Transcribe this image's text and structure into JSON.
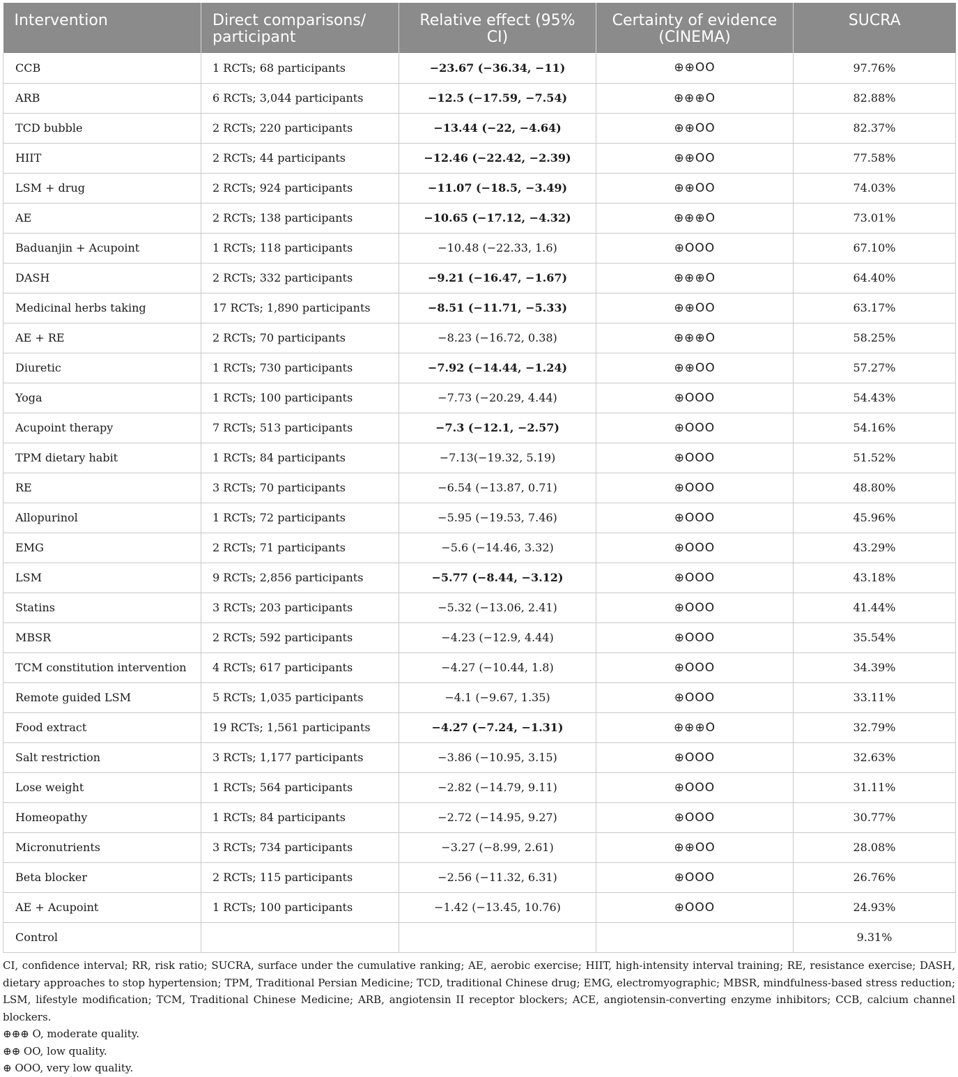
{
  "table": {
    "headers": {
      "intervention": "Intervention",
      "direct": "Direct comparisons/ participant",
      "effect": "Relative effect (95% CI)",
      "certainty": "Certainty of evidence (CINEMA)",
      "sucra": "SUCRA"
    },
    "rows": [
      {
        "intervention": "CCB",
        "direct": "1 RCTs; 68 participants",
        "effect": "−23.67 (−36.34, −11)",
        "effect_bold": true,
        "certainty": "⊕⊕OO",
        "sucra": "97.76%"
      },
      {
        "intervention": "ARB",
        "direct": "6 RCTs; 3,044 participants",
        "effect": "−12.5 (−17.59, −7.54)",
        "effect_bold": true,
        "certainty": "⊕⊕⊕O",
        "sucra": "82.88%"
      },
      {
        "intervention": "TCD bubble",
        "direct": "2 RCTs; 220 participants",
        "effect": "−13.44 (−22, −4.64)",
        "effect_bold": true,
        "certainty": "⊕⊕OO",
        "sucra": "82.37%"
      },
      {
        "intervention": "HIIT",
        "direct": "2 RCTs; 44 participants",
        "effect": "−12.46 (−22.42, −2.39)",
        "effect_bold": true,
        "certainty": "⊕⊕OO",
        "sucra": "77.58%"
      },
      {
        "intervention": "LSM + drug",
        "direct": "2 RCTs; 924 participants",
        "effect": "−11.07 (−18.5, −3.49)",
        "effect_bold": true,
        "certainty": "⊕⊕OO",
        "sucra": "74.03%"
      },
      {
        "intervention": "AE",
        "direct": "2 RCTs; 138 participants",
        "effect": "−10.65 (−17.12, −4.32)",
        "effect_bold": true,
        "certainty": "⊕⊕⊕O",
        "sucra": "73.01%"
      },
      {
        "intervention": "Baduanjin + Acupoint",
        "direct": "1 RCTs; 118 participants",
        "effect": "−10.48 (−22.33, 1.6)",
        "effect_bold": false,
        "certainty": "⊕OOO",
        "sucra": "67.10%"
      },
      {
        "intervention": "DASH",
        "direct": "2 RCTs; 332 participants",
        "effect": "−9.21 (−16.47, −1.67)",
        "effect_bold": true,
        "certainty": "⊕⊕⊕O",
        "sucra": "64.40%"
      },
      {
        "intervention": "Medicinal herbs taking",
        "direct": "17 RCTs; 1,890 participants",
        "effect": "−8.51 (−11.71, −5.33)",
        "effect_bold": true,
        "certainty": "⊕⊕OO",
        "sucra": "63.17%"
      },
      {
        "intervention": "AE + RE",
        "direct": "2 RCTs; 70 participants",
        "effect": "−8.23 (−16.72, 0.38)",
        "effect_bold": false,
        "certainty": "⊕⊕⊕O",
        "sucra": "58.25%"
      },
      {
        "intervention": "Diuretic",
        "direct": "1 RCTs; 730 participants",
        "effect": "−7.92 (−14.44, −1.24)",
        "effect_bold": true,
        "certainty": "⊕⊕OO",
        "sucra": "57.27%"
      },
      {
        "intervention": "Yoga",
        "direct": "1 RCTs; 100 participants",
        "effect": "−7.73 (−20.29, 4.44)",
        "effect_bold": false,
        "certainty": "⊕OOO",
        "sucra": "54.43%"
      },
      {
        "intervention": "Acupoint therapy",
        "direct": "7 RCTs; 513 participants",
        "effect": "−7.3 (−12.1, −2.57)",
        "effect_bold": true,
        "certainty": "⊕OOO",
        "sucra": "54.16%"
      },
      {
        "intervention": "TPM dietary habit",
        "direct": "1 RCTs; 84 participants",
        "effect": "−7.13(−19.32, 5.19)",
        "effect_bold": false,
        "certainty": "⊕OOO",
        "sucra": "51.52%"
      },
      {
        "intervention": "RE",
        "direct": "3 RCTs; 70 participants",
        "effect": "−6.54 (−13.87, 0.71)",
        "effect_bold": false,
        "certainty": "⊕OOO",
        "sucra": "48.80%"
      },
      {
        "intervention": "Allopurinol",
        "direct": "1 RCTs; 72 participants",
        "effect": "−5.95 (−19.53, 7.46)",
        "effect_bold": false,
        "certainty": "⊕OOO",
        "sucra": "45.96%"
      },
      {
        "intervention": "EMG",
        "direct": "2 RCTs; 71 participants",
        "effect": "−5.6 (−14.46, 3.32)",
        "effect_bold": false,
        "certainty": "⊕OOO",
        "sucra": "43.29%"
      },
      {
        "intervention": "LSM",
        "direct": "9 RCTs; 2,856 participants",
        "effect": "−5.77 (−8.44, −3.12)",
        "effect_bold": true,
        "certainty": "⊕OOO",
        "sucra": "43.18%"
      },
      {
        "intervention": "Statins",
        "direct": "3 RCTs; 203 participants",
        "effect": "−5.32 (−13.06, 2.41)",
        "effect_bold": false,
        "certainty": "⊕OOO",
        "sucra": "41.44%"
      },
      {
        "intervention": "MBSR",
        "direct": "2 RCTs; 592 participants",
        "effect": "−4.23 (−12.9, 4.44)",
        "effect_bold": false,
        "certainty": "⊕OOO",
        "sucra": "35.54%"
      },
      {
        "intervention": "TCM constitution intervention",
        "direct": "4 RCTs; 617 participants",
        "effect": "−4.27 (−10.44, 1.8)",
        "effect_bold": false,
        "certainty": "⊕OOO",
        "sucra": "34.39%"
      },
      {
        "intervention": "Remote guided LSM",
        "direct": "5 RCTs; 1,035 participants",
        "effect": "−4.1 (−9.67, 1.35)",
        "effect_bold": false,
        "certainty": "⊕OOO",
        "sucra": "33.11%"
      },
      {
        "intervention": "Food extract",
        "direct": "19 RCTs; 1,561 participants",
        "effect": "−4.27 (−7.24, −1.31)",
        "effect_bold": true,
        "certainty": "⊕⊕⊕O",
        "sucra": "32.79%"
      },
      {
        "intervention": "Salt restriction",
        "direct": "3 RCTs; 1,177 participants",
        "effect": "−3.86 (−10.95, 3.15)",
        "effect_bold": false,
        "certainty": "⊕OOO",
        "sucra": "32.63%"
      },
      {
        "intervention": "Lose weight",
        "direct": "1 RCTs; 564 participants",
        "effect": "−2.82 (−14.79, 9.11)",
        "effect_bold": false,
        "certainty": "⊕OOO",
        "sucra": "31.11%"
      },
      {
        "intervention": "Homeopathy",
        "direct": "1 RCTs; 84 participants",
        "effect": "−2.72 (−14.95, 9.27)",
        "effect_bold": false,
        "certainty": "⊕OOO",
        "sucra": "30.77%"
      },
      {
        "intervention": "Micronutrients",
        "direct": "3 RCTs; 734 participants",
        "effect": "−3.27 (−8.99, 2.61)",
        "effect_bold": false,
        "certainty": "⊕⊕OO",
        "sucra": "28.08%"
      },
      {
        "intervention": "Beta blocker",
        "direct": "2 RCTs; 115 participants",
        "effect": "−2.56 (−11.32, 6.31)",
        "effect_bold": false,
        "certainty": "⊕OOO",
        "sucra": "26.76%"
      },
      {
        "intervention": "AE + Acupoint",
        "direct": "1 RCTs; 100 participants",
        "effect": "−1.42 (−13.45, 10.76)",
        "effect_bold": false,
        "certainty": "⊕OOO",
        "sucra": "24.93%"
      },
      {
        "intervention": "Control",
        "direct": "",
        "effect": "",
        "effect_bold": false,
        "certainty": "",
        "sucra": "9.31%"
      }
    ]
  },
  "footnotes": {
    "abbreviations": "CI, confidence interval; RR, risk ratio; SUCRA, surface under the cumulative ranking; AE, aerobic exercise; HIIT, high-intensity interval training; RE, resistance exercise; DASH, dietary approaches to stop hypertension; TPM, Traditional Persian Medicine; TCD, traditional Chinese drug; EMG, electromyographic; MBSR, mindfulness-based stress reduction; LSM, lifestyle modification; TCM, Traditional Chinese Medicine; ARB, angiotensin II receptor blockers; ACE, angiotensin-converting enzyme inhibitors; CCB, calcium channel blockers.",
    "moderate": "⊕⊕⊕ O, moderate quality.",
    "low": "⊕⊕ OO, low quality.",
    "very_low": "⊕ OOO, very low quality."
  }
}
